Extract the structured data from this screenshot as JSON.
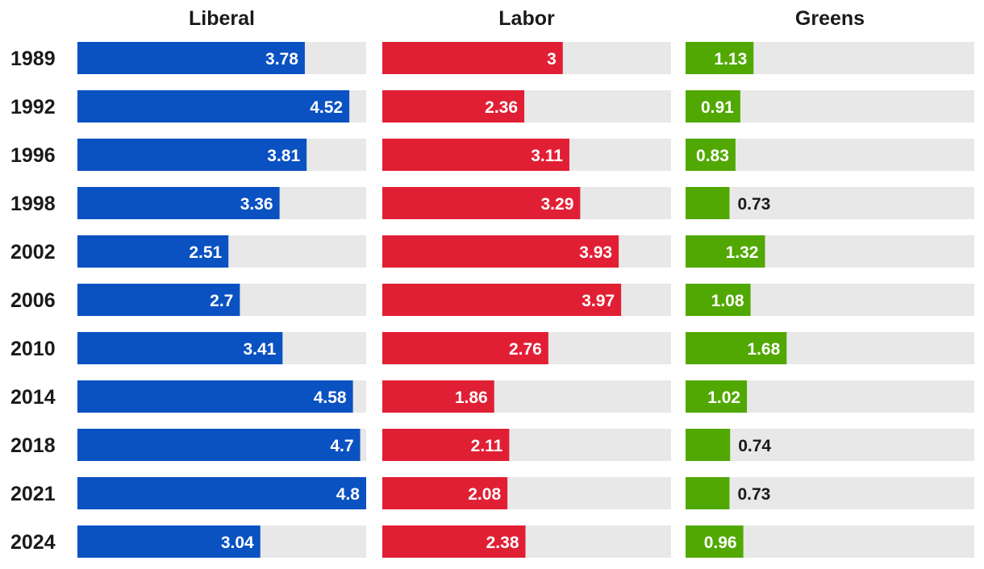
{
  "chart_data": {
    "type": "bar",
    "orientation": "horizontal",
    "layout": "small-multiples",
    "title": "",
    "categories": [
      "1989",
      "1992",
      "1996",
      "1998",
      "2002",
      "2006",
      "2010",
      "2014",
      "2018",
      "2021",
      "2024"
    ],
    "xlim": [
      0,
      4.8
    ],
    "series": [
      {
        "name": "Liberal",
        "color": "#0a51c2",
        "values": [
          3.78,
          4.52,
          3.81,
          3.36,
          2.51,
          2.7,
          3.41,
          4.58,
          4.7,
          4.8,
          3.04
        ],
        "labels": [
          "3.78",
          "4.52",
          "3.81",
          "3.36",
          "2.51",
          "2.7",
          "3.41",
          "4.58",
          "4.7",
          "4.8",
          "3.04"
        ]
      },
      {
        "name": "Labor",
        "color": "#e11f34",
        "values": [
          3,
          2.36,
          3.11,
          3.29,
          3.93,
          3.97,
          2.76,
          1.86,
          2.11,
          2.08,
          2.38
        ],
        "labels": [
          "3",
          "2.36",
          "3.11",
          "3.29",
          "3.93",
          "3.97",
          "2.76",
          "1.86",
          "2.11",
          "2.08",
          "2.38"
        ]
      },
      {
        "name": "Greens",
        "color": "#51a802",
        "values": [
          1.13,
          0.91,
          0.83,
          0.73,
          1.32,
          1.08,
          1.68,
          1.02,
          0.74,
          0.73,
          0.96
        ],
        "labels": [
          "1.13",
          "0.91",
          "0.83",
          "0.73",
          "1.32",
          "1.08",
          "1.68",
          "1.02",
          "0.74",
          "0.73",
          "0.96"
        ]
      }
    ],
    "track_color": "#e8e8e8",
    "label_inside_color": "#ffffff",
    "label_outside_color": "#1a1a1a"
  }
}
